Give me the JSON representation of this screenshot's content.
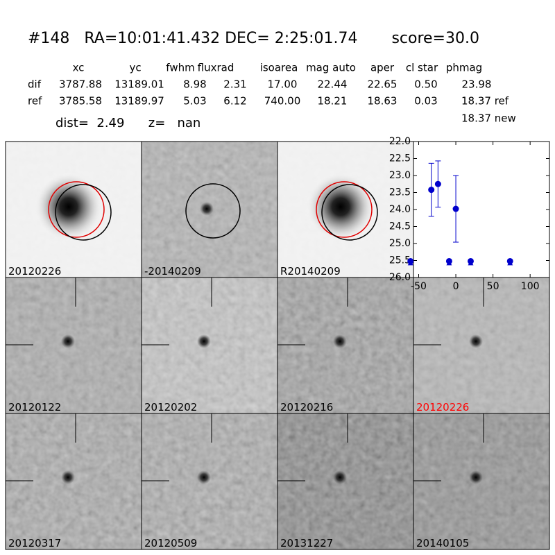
{
  "header": {
    "title": "#148   RA=10:01:41.432 DEC= 2:25:01.74       score=30.0"
  },
  "table": {
    "columns": [
      "xc",
      "yc",
      "fwhm",
      "fluxrad",
      "isoarea",
      "mag auto",
      "aper",
      "cl star",
      "phmag"
    ],
    "rows": [
      [
        "dif",
        "3787.88",
        "13189.01",
        "8.98",
        "2.31",
        "17.00",
        "22.44",
        "22.65",
        "0.50",
        "23.98"
      ],
      [
        "ref",
        "3785.58",
        "13189.97",
        "5.03",
        "6.12",
        "740.00",
        "18.21",
        "18.63",
        "0.03",
        "18.37 ref"
      ]
    ],
    "extra": "18.37 new"
  },
  "info": "dist=  2.49      z=   nan",
  "stamps": [
    {
      "label": "20120226"
    },
    {
      "label": "-20140209"
    },
    {
      "label": "R20140209"
    },
    {
      "label": "20120122"
    },
    {
      "label": "20120202"
    },
    {
      "label": "20120216"
    },
    {
      "label": "20120226",
      "label_color": "#ff0000"
    },
    {
      "label": "20120317"
    },
    {
      "label": "20120509"
    },
    {
      "label": "20131227"
    },
    {
      "label": "20140105"
    }
  ],
  "chart_data": {
    "type": "scatter",
    "xlim": [
      -57,
      126
    ],
    "ylim": [
      22,
      26
    ],
    "y_inverted": true,
    "xticks": [
      -50,
      0,
      50,
      100
    ],
    "yticks": [
      {
        "value": 22,
        "label": "22.0"
      },
      22.5,
      {
        "value": 23,
        "label": "23.0"
      },
      23.5,
      {
        "value": 24,
        "label": "24.0"
      },
      24.5,
      {
        "value": 25,
        "label": "25.0"
      },
      25.5,
      {
        "value": 26,
        "label": "26.0"
      }
    ],
    "series": [
      {
        "color": "#0000cc",
        "marker": "circle",
        "x": [
          -33,
          -24,
          0
        ],
        "values": [
          23.42,
          23.25,
          23.98
        ],
        "errors": [
          0.78,
          0.68,
          0.98
        ]
      },
      {
        "color": "#0000cc",
        "marker": "circle",
        "x": [
          -61,
          -9,
          20,
          73
        ],
        "values": [
          25.52,
          25.52,
          25.52,
          25.52
        ]
      },
      {
        "color": "#0000cc",
        "marker": "triangle",
        "x": [
          -61,
          -9,
          20,
          73
        ],
        "values": [
          25.58,
          25.58,
          25.58,
          25.58
        ]
      }
    ]
  }
}
